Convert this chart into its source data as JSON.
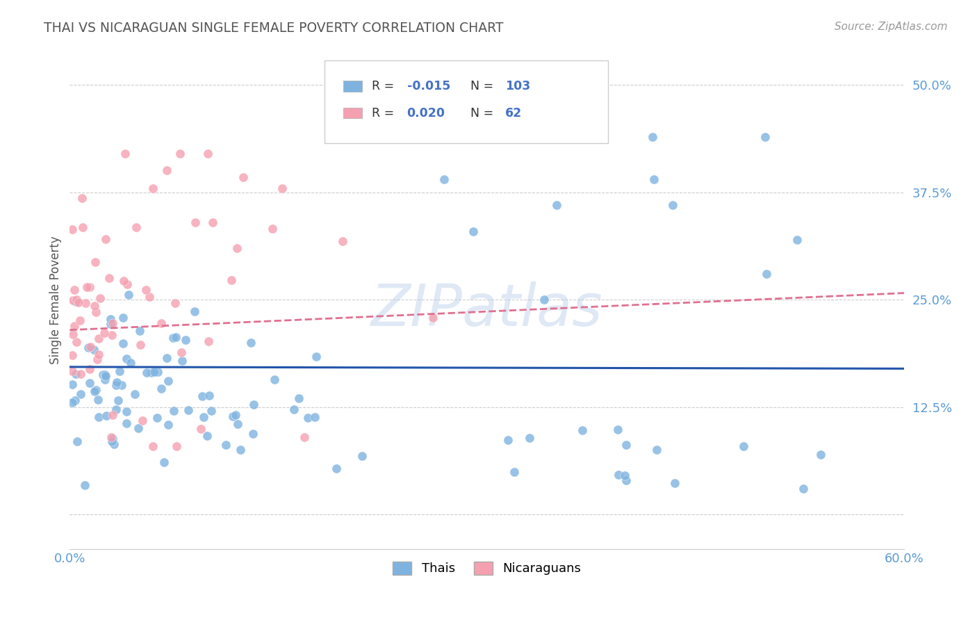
{
  "title": "THAI VS NICARAGUAN SINGLE FEMALE POVERTY CORRELATION CHART",
  "source": "Source: ZipAtlas.com",
  "ylabel": "Single Female Poverty",
  "xlim": [
    0.0,
    0.6
  ],
  "ylim": [
    -0.04,
    0.54
  ],
  "thai_R": -0.015,
  "thai_N": 103,
  "nic_R": 0.02,
  "nic_N": 62,
  "thai_color": "#7EB3E0",
  "nic_color": "#F5A0B0",
  "thai_line_color": "#2255AA",
  "nic_line_color": "#E07090",
  "legend_label_thai": "Thais",
  "legend_label_nic": "Nicaraguans",
  "background_color": "#FFFFFF",
  "grid_color": "#CCCCCC",
  "title_color": "#555555",
  "axis_label_color": "#555555",
  "tick_color": "#5B9BD5",
  "thai_line_y0": 0.172,
  "thai_line_y1": 0.17,
  "nic_line_y0": 0.215,
  "nic_line_y1": 0.258
}
